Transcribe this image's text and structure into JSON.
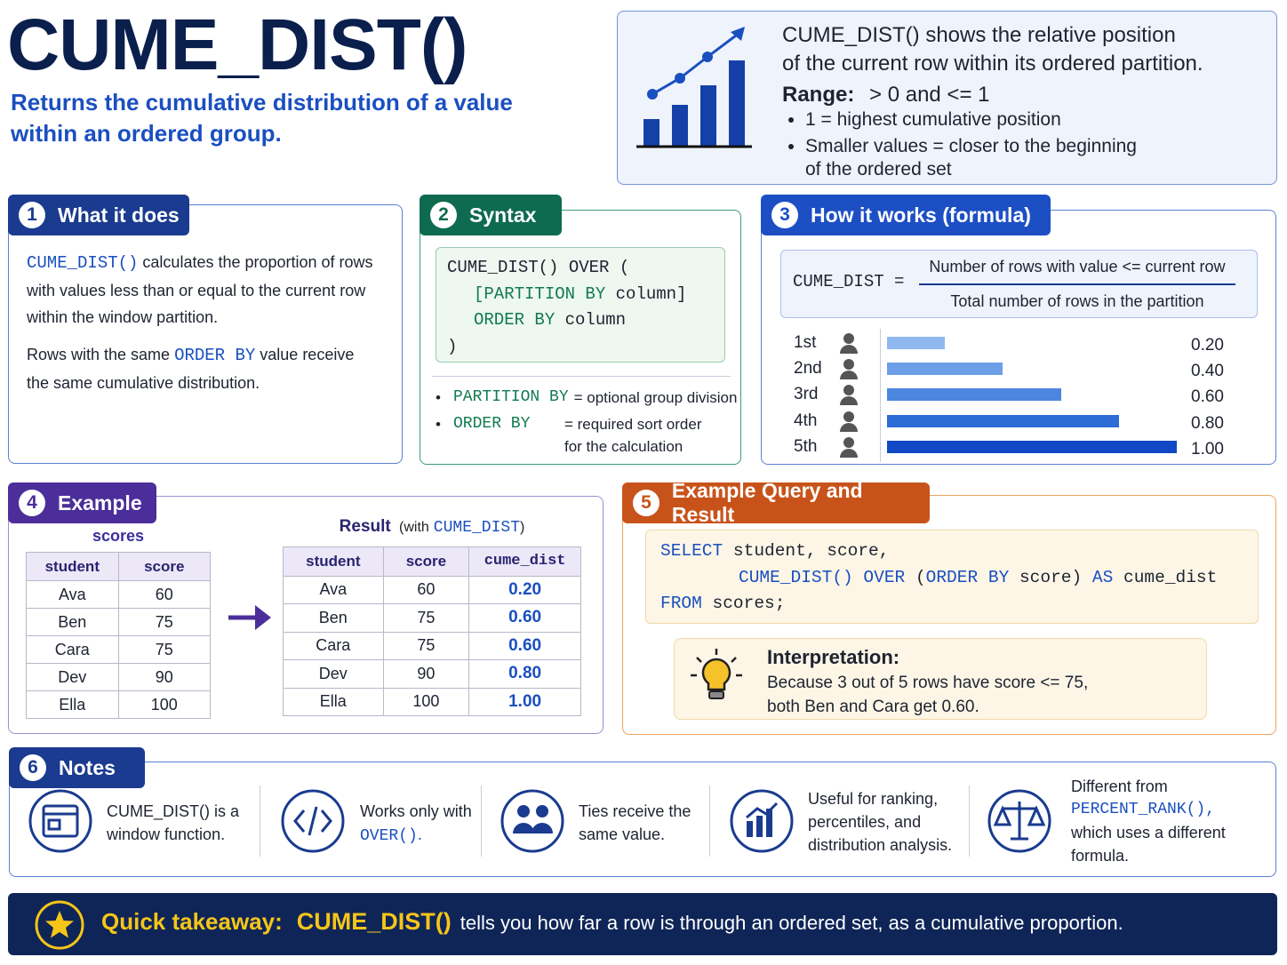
{
  "header": {
    "title": "CUME_DIST()",
    "subtitle": "Returns the cumulative distribution of a value within an ordered group."
  },
  "summary": {
    "line1": "CUME_DIST() shows the relative position",
    "line2": "of the current row within its ordered partition.",
    "range_label": "Range:",
    "range_value": "> 0 and <= 1",
    "bullet1": "1 = highest cumulative position",
    "bullet2": "Smaller values = closer to the beginning of the ordered set"
  },
  "what_it_does": {
    "number": "1",
    "title": "What it does",
    "p1_code": "CUME_DIST()",
    "p1_text": " calculates the proportion of rows with values less than or equal to the current row within the window partition.",
    "p2_before": "Rows with the same ",
    "p2_code": "ORDER BY",
    "p2_after": " value receive the same cumulative distribution."
  },
  "syntax": {
    "number": "2",
    "title": "Syntax",
    "line1": "CUME_DIST() OVER (",
    "line2_keyword": "[PARTITION BY",
    "line2_rest": " column]",
    "line3_keyword": "ORDER BY",
    "line3_rest": " column",
    "line4": ")",
    "note1_term": "PARTITION BY",
    "note1_desc": "= optional group division",
    "note2_term": "ORDER BY",
    "note2_desc": "= required sort order for the calculation"
  },
  "formula": {
    "number": "3",
    "title": "How it works (formula)",
    "lhs": "CUME_DIST =",
    "numerator": "Number of rows with value <= current row",
    "denominator": "Total number of rows in the partition",
    "ranks": [
      "1st",
      "2nd",
      "3rd",
      "4th",
      "5th"
    ],
    "values": [
      0.2,
      0.4,
      0.6,
      0.8,
      1.0
    ],
    "value_labels": [
      "0.20",
      "0.40",
      "0.60",
      "0.80",
      "1.00"
    ],
    "colors": [
      "#8fb8ee",
      "#6c9fe8",
      "#4d86e0",
      "#2d6bd6",
      "#1148c6"
    ]
  },
  "example": {
    "number": "4",
    "title": "Example",
    "input_caption": "scores",
    "input_columns": [
      "student",
      "score"
    ],
    "input_rows": [
      [
        "Ava",
        "60"
      ],
      [
        "Ben",
        "75"
      ],
      [
        "Cara",
        "75"
      ],
      [
        "Dev",
        "90"
      ],
      [
        "Ella",
        "100"
      ]
    ],
    "result_caption": "Result",
    "result_paren_open": "(with",
    "result_fn": "CUME_DIST",
    "result_paren_close": ")",
    "result_columns": [
      "student",
      "score",
      "cume_dist"
    ],
    "result_rows": [
      [
        "Ava",
        "60",
        "0.20"
      ],
      [
        "Ben",
        "75",
        "0.60"
      ],
      [
        "Cara",
        "75",
        "0.60"
      ],
      [
        "Dev",
        "90",
        "0.80"
      ],
      [
        "Ella",
        "100",
        "1.00"
      ]
    ]
  },
  "query": {
    "number": "5",
    "title": "Example Query and Result",
    "select": "SELECT",
    "select_rest": " student, score,",
    "fn": "CUME_DIST()",
    "over": " OVER",
    "paren": " (",
    "order_by": "ORDER BY",
    "order_rest": " score)",
    "as": " AS",
    "alias": " cume_dist",
    "from": "FROM",
    "from_rest": " scores;",
    "interp_title": "Interpretation:",
    "interp_line1": "Because 3 out of 5 rows have score <= 75,",
    "interp_line2": "both Ben and Cara get 0.60."
  },
  "notes": {
    "number": "6",
    "title": "Notes",
    "item1": "CUME_DIST() is a window function.",
    "item2_before": "Works only with ",
    "item2_code": "OVER()",
    "item2_after": ".",
    "item3": "Ties receive the same value.",
    "item4": "Useful for ranking, percentiles, and distribution analysis.",
    "item5_before": "Different from",
    "item5_code": "PERCENT_RANK(),",
    "item5_after": "which uses a different formula."
  },
  "takeaway": {
    "label": "Quick takeaway:",
    "fn": "CUME_DIST()",
    "text": "tells you how far a row is through an ordered set, as a cumulative proportion."
  }
}
